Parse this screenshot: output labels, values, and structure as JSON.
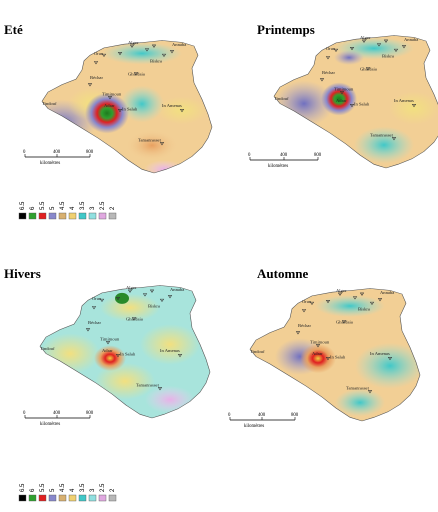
{
  "panels": [
    {
      "id": "ete",
      "title": "Eté",
      "scale": {
        "ticks": [
          "0",
          "400",
          "800"
        ],
        "unit": "kilomètres"
      }
    },
    {
      "id": "printemps",
      "title": "Printemps",
      "scale": {
        "ticks": [
          "0",
          "400",
          "800"
        ],
        "unit": "kilomètres"
      }
    },
    {
      "id": "hivers",
      "title": "Hivers",
      "scale": {
        "ticks": [
          "0",
          "400",
          "800"
        ],
        "unit": "kilomètres"
      }
    },
    {
      "id": "automne",
      "title": "Automne",
      "scale": {
        "ticks": [
          "0",
          "400",
          "800"
        ],
        "unit": "kilomètres"
      }
    }
  ],
  "places": [
    "Alger",
    "Oran",
    "Biskra",
    "Ghardaia",
    "Béchar",
    "Timimoun",
    "Adrar",
    "In Salah",
    "In Amenas",
    "Tamanrasset",
    "Tindouf",
    "Annaba"
  ],
  "legend": {
    "values": [
      "6.5",
      "6",
      "5.5",
      "5",
      "4.5",
      "4",
      "3.5",
      "3",
      "2.5",
      "2"
    ],
    "colors": [
      "#000000",
      "#2fa02f",
      "#e02020",
      "#8888cc",
      "#d8b070",
      "#f0d070",
      "#40c8c8",
      "#90e0e0",
      "#e0a8e0",
      "#b8b8b8"
    ]
  }
}
